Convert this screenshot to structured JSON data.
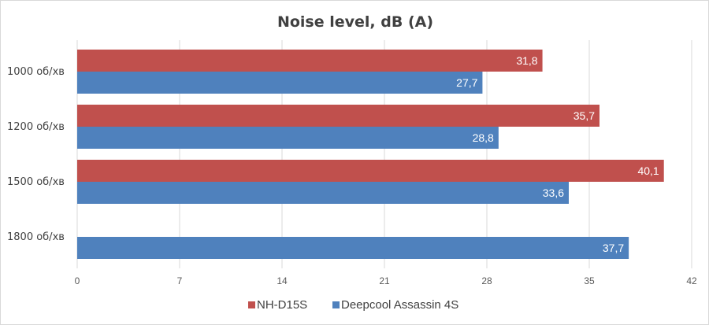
{
  "chart_data": {
    "type": "bar",
    "orientation": "horizontal",
    "title": "Noise level, dB (A)",
    "categories": [
      "1000 об/хв",
      "1200 об/хв",
      "1500 об/хв",
      "1800 об/хв"
    ],
    "series": [
      {
        "name": "NH-D15S",
        "color": "#c0504d",
        "values": [
          31.8,
          35.7,
          40.1,
          null
        ],
        "labels": [
          "31,8",
          "35,7",
          "40,1",
          null
        ]
      },
      {
        "name": "Deepcool Assassin 4S",
        "color": "#4f81bd",
        "values": [
          27.7,
          28.8,
          33.6,
          37.7
        ],
        "labels": [
          "27,7",
          "28,8",
          "33,6",
          "37,7"
        ]
      }
    ],
    "xlim": [
      0,
      42
    ],
    "xticks": [
      0,
      7,
      14,
      21,
      28,
      35,
      42
    ],
    "grid": true,
    "legend_position": "bottom"
  }
}
